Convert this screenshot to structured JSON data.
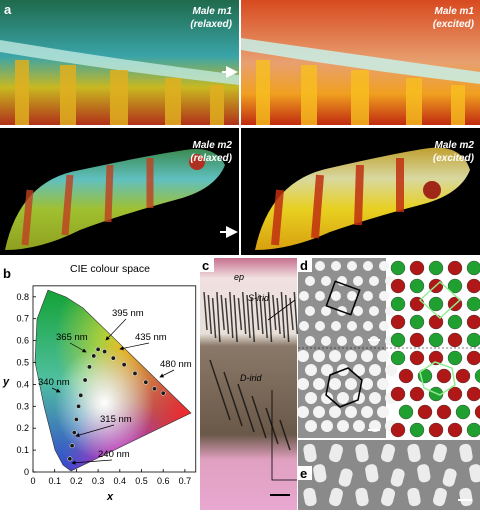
{
  "panels": {
    "a": {
      "label": "a",
      "photos": [
        {
          "name": "Male m1",
          "state": "(relaxed)"
        },
        {
          "name": "Male m1",
          "state": "(excited)"
        },
        {
          "name": "Male m2",
          "state": "(relaxed)"
        },
        {
          "name": "Male m2",
          "state": "(excited)"
        }
      ]
    },
    "b": {
      "label": "b",
      "chart_data": {
        "type": "scatter",
        "title": "CIE colour space",
        "x_label": "x",
        "y_label": "y",
        "xlim": [
          0,
          0.75
        ],
        "ylim": [
          0,
          0.85
        ],
        "xticks": [
          0,
          0.1,
          0.2,
          0.3,
          0.4,
          0.5,
          0.6,
          0.7
        ],
        "yticks": [
          0,
          0.1,
          0.2,
          0.3,
          0.4,
          0.5,
          0.6,
          0.7,
          0.8
        ],
        "x": [
          0.17,
          0.18,
          0.19,
          0.2,
          0.21,
          0.22,
          0.24,
          0.26,
          0.28,
          0.3,
          0.33,
          0.37,
          0.42,
          0.47,
          0.52,
          0.56,
          0.6
        ],
        "values": [
          0.06,
          0.12,
          0.18,
          0.24,
          0.3,
          0.35,
          0.42,
          0.48,
          0.53,
          0.56,
          0.55,
          0.52,
          0.49,
          0.45,
          0.41,
          0.38,
          0.36
        ],
        "color": "#1a1a1a",
        "annotations": [
          "395 nm",
          "365 nm",
          "435 nm",
          "480 nm",
          "340 nm",
          "315 nm",
          "240 nm"
        ]
      }
    },
    "c": {
      "label": "c",
      "layers": [
        "ep",
        "S-irid",
        "D-irid"
      ]
    },
    "d": {
      "label": "d"
    },
    "e": {
      "label": "e"
    }
  }
}
